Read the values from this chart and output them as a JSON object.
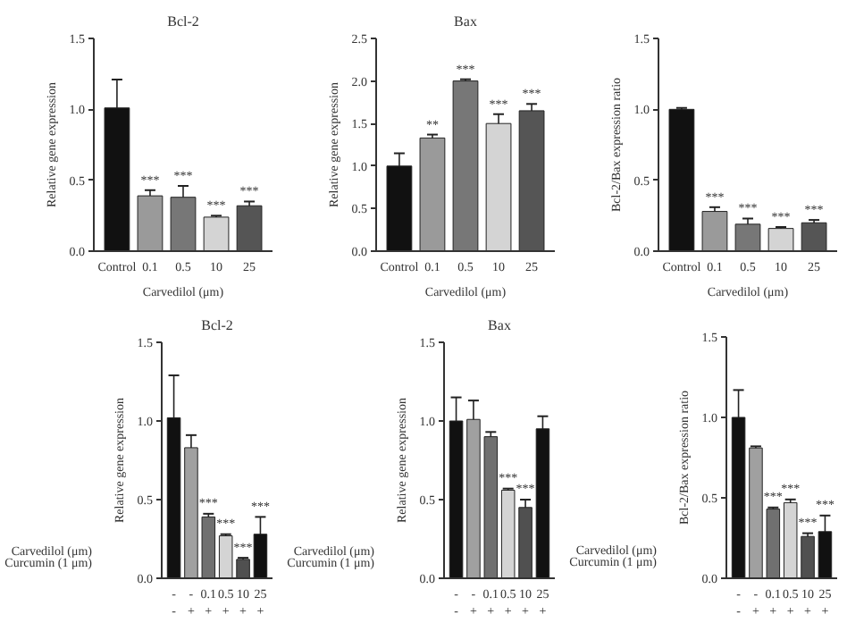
{
  "chart_data": [
    {
      "type": "bar",
      "title": "Bcl-2",
      "ylabel": "Relative gene expression",
      "xlabel": "Carvedilol (μm)",
      "categories": [
        "Control",
        "0.1",
        "0.5",
        "10",
        "25"
      ],
      "values": [
        1.01,
        0.39,
        0.38,
        0.24,
        0.32
      ],
      "errors": [
        0.2,
        0.04,
        0.08,
        0.01,
        0.03
      ],
      "colors": [
        "#111111",
        "#9a9a9a",
        "#777777",
        "#d4d4d4",
        "#555555"
      ],
      "ylim": [
        0,
        1.5
      ],
      "yticks": [
        {
          "value": 0,
          "label": "0.0"
        },
        0.5,
        {
          "value": 1,
          "label": "1.0"
        },
        1.5
      ],
      "grid": false,
      "annotations": [
        {
          "text": "***",
          "x": "0.1",
          "y": 0.45
        },
        {
          "text": "***",
          "x": "0.5",
          "y": 0.48
        },
        {
          "text": "***",
          "x": "10",
          "y": 0.27
        },
        {
          "text": "***",
          "x": "25",
          "y": 0.37
        }
      ]
    },
    {
      "type": "bar",
      "title": "Bax",
      "ylabel": "Relative gene expression",
      "xlabel": "Carvedilol (μm)",
      "categories": [
        "Control",
        "0.1",
        "0.5",
        "10",
        "25"
      ],
      "values": [
        1.0,
        1.33,
        2.0,
        1.5,
        1.65
      ],
      "errors": [
        0.15,
        0.04,
        0.02,
        0.11,
        0.08
      ],
      "colors": [
        "#111111",
        "#9a9a9a",
        "#777777",
        "#d4d4d4",
        "#555555"
      ],
      "ylim": [
        0,
        2.5
      ],
      "yticks": [
        {
          "value": 0,
          "label": "0.0"
        },
        0.5,
        {
          "value": 1,
          "label": "1.0"
        },
        1.5,
        {
          "value": 2,
          "label": "2.0"
        },
        2.5
      ],
      "grid": false,
      "annotations": [
        {
          "text": "**",
          "x": "0.1",
          "y": 1.4
        },
        {
          "text": "***",
          "x": "0.5",
          "y": 2.05
        },
        {
          "text": "***",
          "x": "10",
          "y": 1.64
        },
        {
          "text": "***",
          "x": "25",
          "y": 1.76
        }
      ]
    },
    {
      "type": "bar",
      "ylabel": "Bcl-2/Bax expression ratio",
      "xlabel": "Carvedilol (μm)",
      "categories": [
        "Control",
        "0.1",
        "0.5",
        "10",
        "25"
      ],
      "values": [
        1.0,
        0.28,
        0.19,
        0.16,
        0.2
      ],
      "errors": [
        0.01,
        0.03,
        0.04,
        0.01,
        0.02
      ],
      "colors": [
        "#111111",
        "#9a9a9a",
        "#777777",
        "#d4d4d4",
        "#555555"
      ],
      "ylim": [
        0,
        1.5
      ],
      "yticks": [
        {
          "value": 0,
          "label": "0.0"
        },
        0.5,
        {
          "value": 1,
          "label": "1.0"
        },
        1.5
      ],
      "grid": false,
      "annotations": [
        {
          "text": "***",
          "x": "0.1",
          "y": 0.33
        },
        {
          "text": "***",
          "x": "0.5",
          "y": 0.25
        },
        {
          "text": "***",
          "x": "10",
          "y": 0.19
        },
        {
          "text": "***",
          "x": "25",
          "y": 0.24
        }
      ]
    },
    {
      "type": "bar",
      "title": "Bcl-2",
      "ylabel": "Relative gene expression",
      "categories": [
        "-\n-",
        "-\n+",
        "0.1\n+",
        "0.5\n+",
        "10\n+",
        "25\n+"
      ],
      "values": [
        1.02,
        0.83,
        0.39,
        0.27,
        0.12,
        0.28
      ],
      "errors": [
        0.27,
        0.08,
        0.02,
        0.01,
        0.01,
        0.11
      ],
      "colors": [
        "#111111",
        "#a0a0a0",
        "#707070",
        "#d4d4d4",
        "#505050",
        "#111111"
      ],
      "ylim": [
        0,
        1.5
      ],
      "yticks": [
        {
          "value": 0,
          "label": "0.0"
        },
        0.5,
        {
          "value": 1,
          "label": "1.0"
        },
        1.5
      ],
      "grid": false,
      "annotations": [
        "Carvedilol (μm)",
        "Curcumin (1 μm)",
        {
          "text": "***",
          "x": "0.1\n+",
          "y": 0.43
        },
        {
          "text": "***",
          "x": "0.5\n+",
          "y": 0.3
        },
        {
          "text": "***",
          "x": "10\n+",
          "y": 0.15
        },
        {
          "text": "***",
          "x": "25\n+",
          "y": 0.41
        }
      ]
    },
    {
      "type": "bar",
      "title": "Bax",
      "ylabel": "Relative gene expression",
      "categories": [
        "-\n-",
        "-\n+",
        "0.1\n+",
        "0.5\n+",
        "10\n+",
        "25\n+"
      ],
      "values": [
        1.0,
        1.01,
        0.9,
        0.56,
        0.45,
        0.95
      ],
      "errors": [
        0.15,
        0.12,
        0.03,
        0.01,
        0.05,
        0.08
      ],
      "colors": [
        "#111111",
        "#a0a0a0",
        "#707070",
        "#d4d4d4",
        "#505050",
        "#111111"
      ],
      "ylim": [
        0,
        1.5
      ],
      "yticks": [
        {
          "value": 0,
          "label": "0.0"
        },
        0.5,
        {
          "value": 1,
          "label": "1.0"
        },
        1.5
      ],
      "grid": false,
      "annotations": [
        "Carvedilol (μm)",
        "Curcumin (1 μm)",
        {
          "text": "***",
          "x": "0.5\n+",
          "y": 0.59
        },
        {
          "text": "***",
          "x": "10\n+",
          "y": 0.52
        }
      ]
    },
    {
      "type": "bar",
      "ylabel": "Bcl-2/Bax expression ratio",
      "categories": [
        "-\n-",
        "-\n+",
        "0.1\n+",
        "0.5\n+",
        "10\n+",
        "25\n+"
      ],
      "values": [
        1.0,
        0.81,
        0.43,
        0.47,
        0.26,
        0.29
      ],
      "errors": [
        0.17,
        0.01,
        0.01,
        0.02,
        0.02,
        0.1
      ],
      "colors": [
        "#111111",
        "#a0a0a0",
        "#707070",
        "#d4d4d4",
        "#505050",
        "#111111"
      ],
      "ylim": [
        0,
        1.5
      ],
      "yticks": [
        {
          "value": 0,
          "label": "0.0"
        },
        0.5,
        {
          "value": 1,
          "label": "1.0"
        },
        1.5
      ],
      "grid": false,
      "annotations": [
        "Carvedilol (μm)",
        "Curcumin (1 μm)",
        {
          "text": "***",
          "x": "0.1\n+",
          "y": 0.46
        },
        {
          "text": "***",
          "x": "0.5\n+",
          "y": 0.51
        },
        {
          "text": "***",
          "x": "10\n+",
          "y": 0.3
        },
        {
          "text": "***",
          "x": "25\n+",
          "y": 0.41
        }
      ]
    }
  ]
}
